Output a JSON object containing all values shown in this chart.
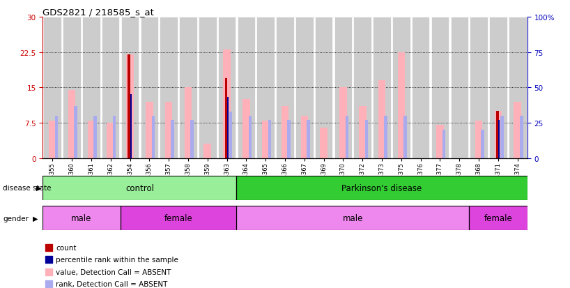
{
  "title": "GDS2821 / 218585_s_at",
  "samples": [
    "GSM184355",
    "GSM184360",
    "GSM184361",
    "GSM184362",
    "GSM184354",
    "GSM184356",
    "GSM184357",
    "GSM184358",
    "GSM184359",
    "GSM184363",
    "GSM184364",
    "GSM184365",
    "GSM184366",
    "GSM184367",
    "GSM184369",
    "GSM184370",
    "GSM184372",
    "GSM184373",
    "GSM184375",
    "GSM184376",
    "GSM184377",
    "GSM184378",
    "GSM184368",
    "GSM184371",
    "GSM184374"
  ],
  "value_absent": [
    8,
    14.5,
    8,
    7.5,
    22,
    12,
    12,
    15,
    3,
    23,
    12.5,
    8,
    11,
    9,
    6.5,
    15,
    11,
    16.5,
    22.5,
    0,
    7,
    0,
    8,
    10,
    12
  ],
  "rank_absent_pct": [
    30,
    37,
    30,
    30,
    0,
    30,
    27,
    27,
    0,
    33,
    30,
    27,
    27,
    27,
    0,
    30,
    27,
    30,
    30,
    0,
    20,
    0,
    20,
    30,
    30
  ],
  "count": [
    0,
    0,
    0,
    0,
    22,
    0,
    0,
    0,
    0,
    17,
    0,
    0,
    0,
    0,
    0,
    0,
    0,
    0,
    0,
    0,
    0,
    0,
    0,
    10,
    0
  ],
  "percentile_pct": [
    0,
    0,
    0,
    0,
    45,
    0,
    0,
    0,
    0,
    43,
    0,
    0,
    0,
    0,
    0,
    0,
    0,
    0,
    0,
    0,
    0,
    0,
    0,
    27,
    0
  ],
  "ylim_left": [
    0,
    30
  ],
  "ylim_right": [
    0,
    100
  ],
  "yticks_left": [
    0,
    7.5,
    15,
    22.5,
    30
  ],
  "yticks_right": [
    0,
    25,
    50,
    75,
    100
  ],
  "color_value_absent": "#FFB0B8",
  "color_rank_absent": "#AAAAEE",
  "color_count": "#BB0000",
  "color_percentile": "#000099",
  "color_control_bg": "#99EE99",
  "color_parkinsons_bg": "#33CC33",
  "color_male_bg": "#EE88EE",
  "color_female_bg": "#DD44DD",
  "bar_bg_color": "#CCCCCC",
  "left_axis_color": "#CC0000",
  "right_axis_color": "#0000BB",
  "ytick_left_labels": [
    "0",
    "7.5",
    "15",
    "22.5",
    "30"
  ],
  "ytick_right_labels": [
    "0",
    "25",
    "50",
    "75",
    "100%"
  ]
}
